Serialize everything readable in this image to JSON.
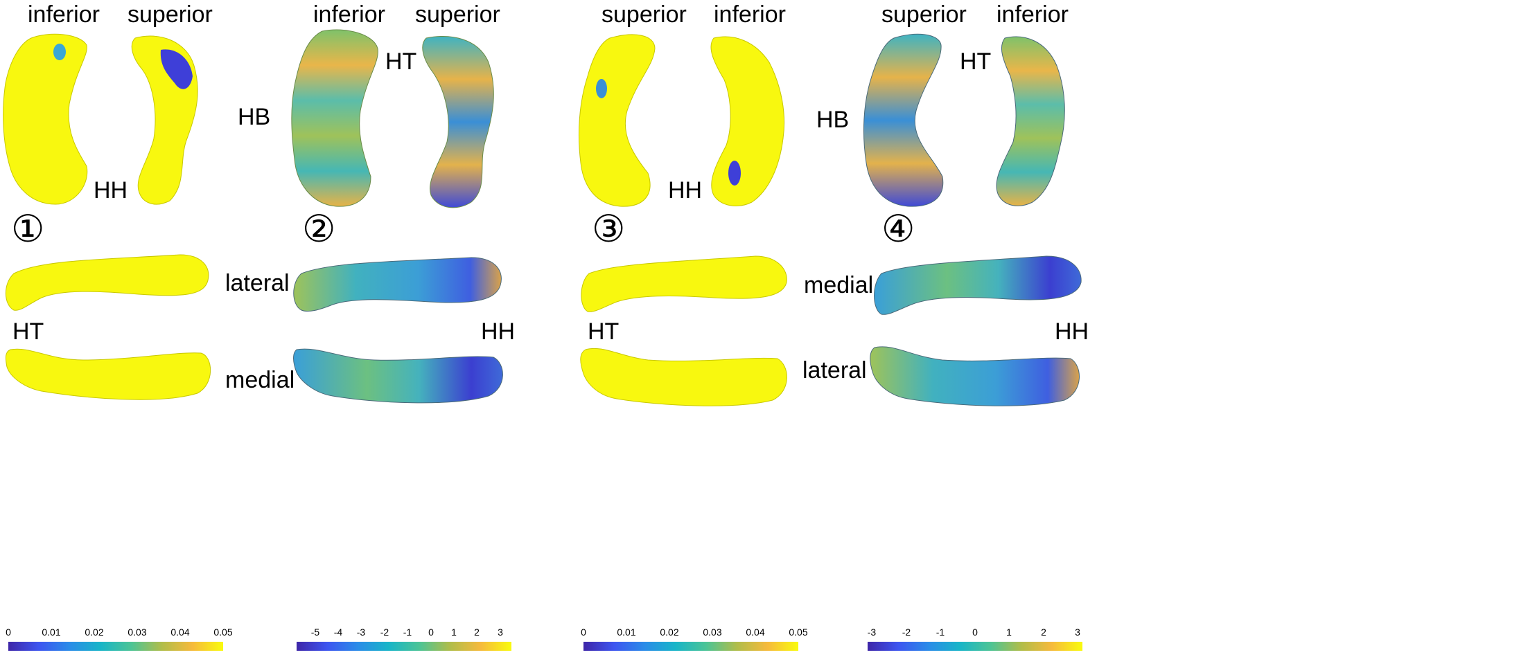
{
  "panels": [
    {
      "number": "①",
      "top_left_label": "inferior",
      "top_right_label": "superior",
      "top_mid_label": "HB",
      "top_bottom_label": "HH",
      "bottom_upper_label": "lateral",
      "bottom_lower_label": "medial",
      "bottom_left_label": "HT",
      "colorbar_ticks": [
        "0",
        "0.01",
        "0.02",
        "0.03",
        "0.04",
        "0.05"
      ],
      "colorbar_range": [
        0,
        0.05
      ]
    },
    {
      "number": "②",
      "top_left_label": "inferior",
      "top_right_label": "superior",
      "top_mid_label": "HT",
      "bottom_right_label": "HH",
      "colorbar_ticks": [
        "-5",
        "-4",
        "-3",
        "-2",
        "-1",
        "0",
        "1",
        "2",
        "3"
      ],
      "colorbar_range": [
        -5.7,
        3.5
      ]
    },
    {
      "number": "③",
      "top_left_label": "superior",
      "top_right_label": "inferior",
      "top_bottom_label": "HH",
      "bottom_upper_label": "medial",
      "bottom_lower_label": "lateral",
      "bottom_left_label": "HT",
      "colorbar_ticks": [
        "0",
        "0.01",
        "0.02",
        "0.03",
        "0.04",
        "0.05"
      ],
      "colorbar_range": [
        0,
        0.05
      ]
    },
    {
      "number": "④",
      "top_left_label": "superior",
      "top_right_label": "inferior",
      "top_mid_label": "HT",
      "top_far_left_label": "HB",
      "bottom_right_label": "HH",
      "colorbar_ticks": [
        "-3",
        "-2",
        "-1",
        "0",
        "1",
        "2",
        "3"
      ],
      "colorbar_range": [
        -3.2,
        3.3
      ]
    }
  ],
  "colors": {
    "yellow": "#f8f80f",
    "blue": "#3e3fd8",
    "teal": "#33b4b8",
    "green": "#8fc05b",
    "orange": "#f2b43a"
  }
}
